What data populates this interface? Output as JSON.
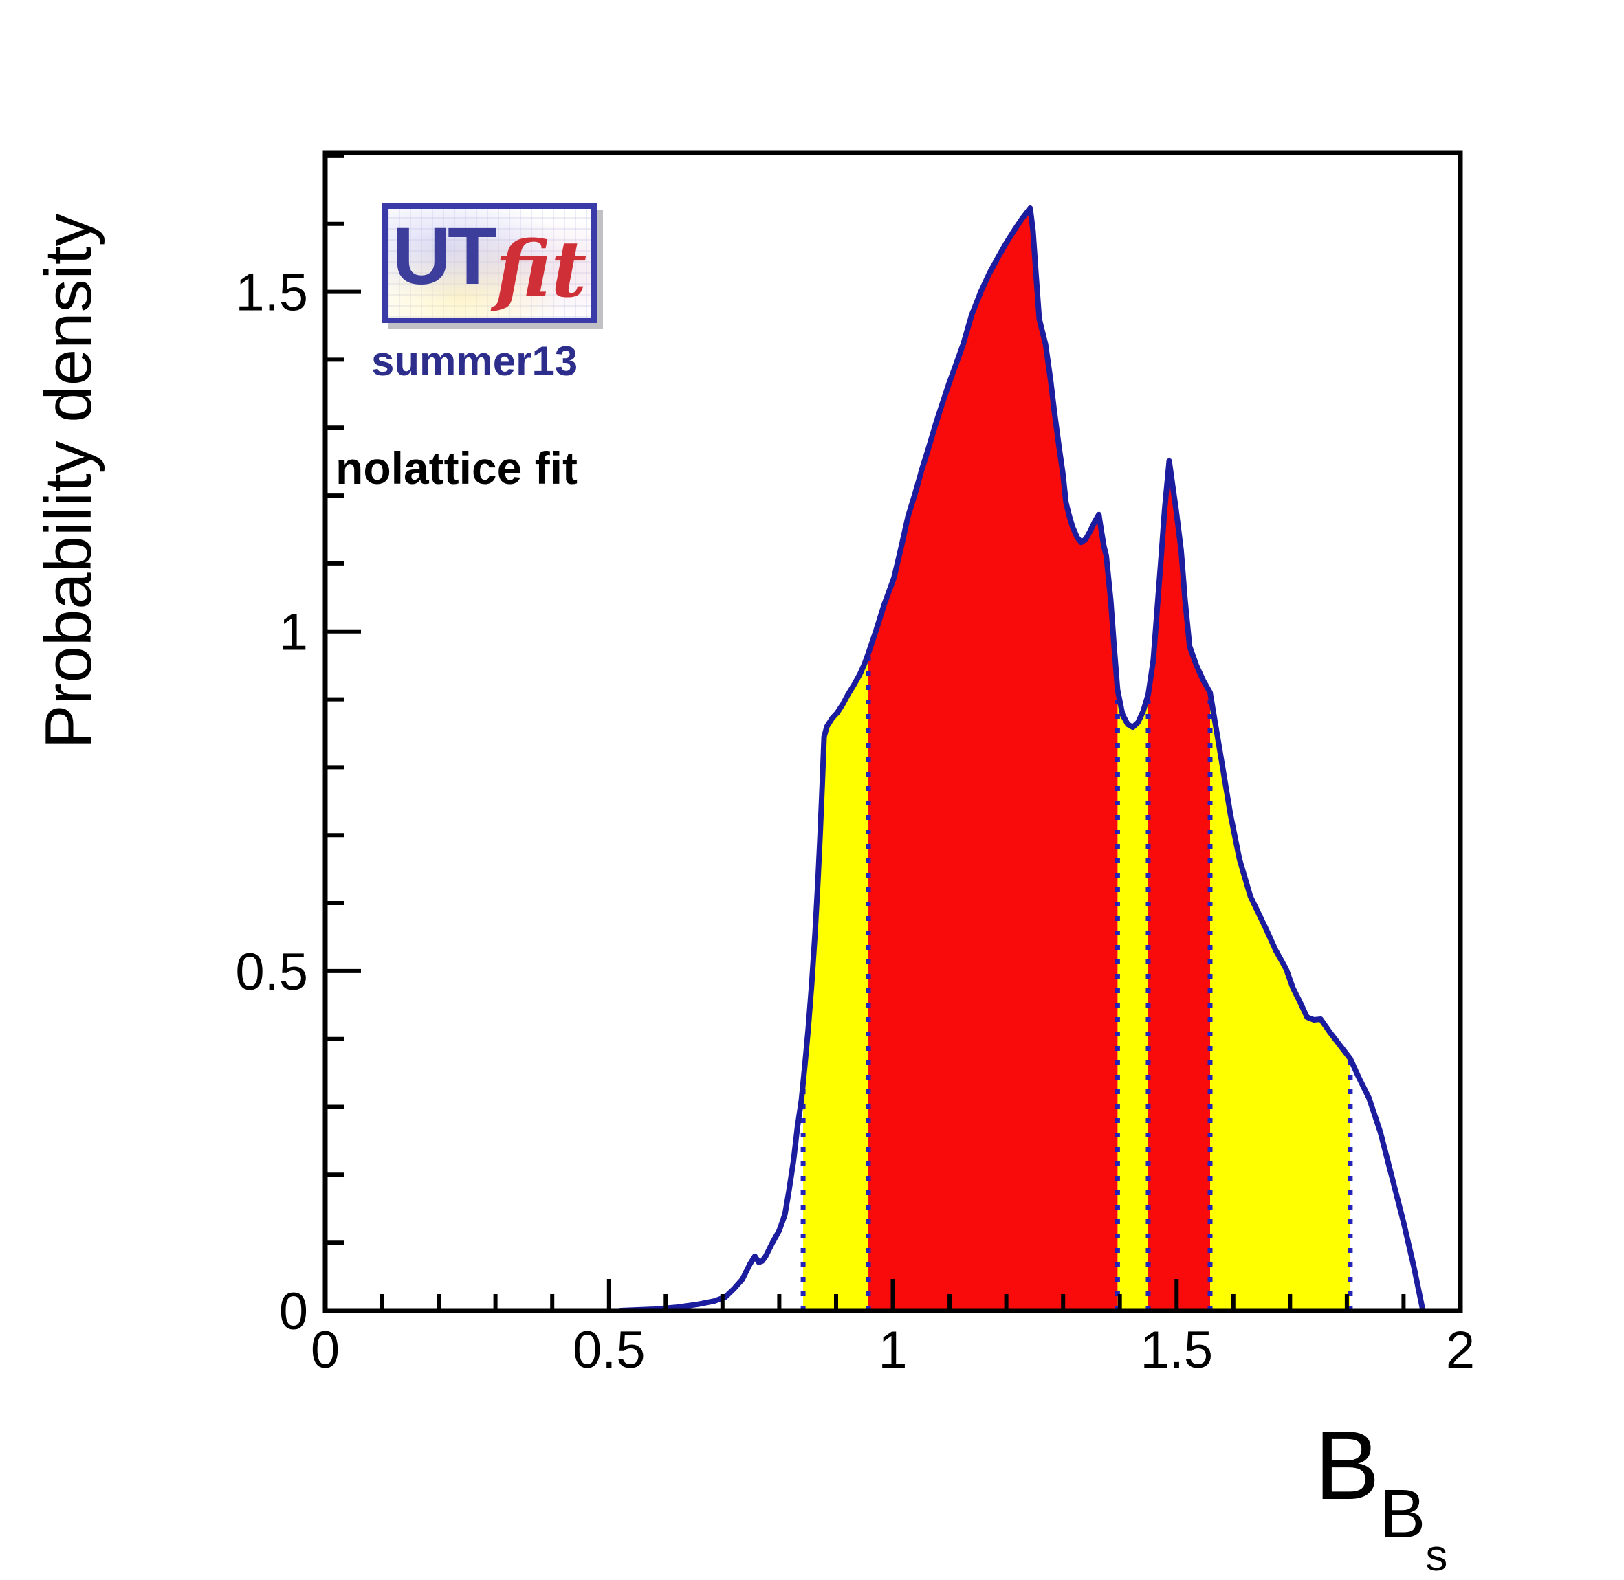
{
  "logo": {
    "ut": "UT",
    "fit": "fit"
  },
  "annotations": {
    "dataset": "summer13",
    "fit_label": "nolattice fit"
  },
  "chart_data": {
    "type": "area",
    "title": "",
    "xlabel": "B_{B_s}",
    "xlabel_main": "B",
    "xlabel_sub": "B",
    "xlabel_subsub": "s",
    "ylabel": "Probability density",
    "xlim": [
      0,
      2
    ],
    "ylim": [
      0,
      1.705
    ],
    "grid": false,
    "legend": "none",
    "x_ticks": {
      "major": [
        0,
        0.5,
        1,
        1.5,
        2
      ],
      "minor_step": 0.1,
      "labels": [
        {
          "value": 0,
          "text": "0"
        },
        {
          "value": 0.5,
          "text": "0.5"
        },
        {
          "value": 1,
          "text": "1"
        },
        {
          "value": 1.5,
          "text": "1.5"
        },
        {
          "value": 2,
          "text": "2"
        }
      ]
    },
    "y_ticks": {
      "major": [
        0,
        0.5,
        1,
        1.5
      ],
      "minor_step": 0.1,
      "minor_max": 1.7,
      "labels": [
        {
          "value": 0,
          "text": "0"
        },
        {
          "value": 0.5,
          "text": "0.5"
        },
        {
          "value": 1,
          "text": "1"
        },
        {
          "value": 1.5,
          "text": "1.5"
        }
      ]
    },
    "curve": [
      [
        0.52,
        0
      ],
      [
        0.58,
        0.002
      ],
      [
        0.62,
        0.005
      ],
      [
        0.655,
        0.009
      ],
      [
        0.685,
        0.014
      ],
      [
        0.705,
        0.02
      ],
      [
        0.72,
        0.032
      ],
      [
        0.735,
        0.046
      ],
      [
        0.748,
        0.068
      ],
      [
        0.757,
        0.08
      ],
      [
        0.764,
        0.071
      ],
      [
        0.77,
        0.073
      ],
      [
        0.776,
        0.08
      ],
      [
        0.788,
        0.1
      ],
      [
        0.8,
        0.118
      ],
      [
        0.81,
        0.142
      ],
      [
        0.817,
        0.176
      ],
      [
        0.825,
        0.22
      ],
      [
        0.832,
        0.27
      ],
      [
        0.839,
        0.31
      ],
      [
        0.845,
        0.36
      ],
      [
        0.851,
        0.415
      ],
      [
        0.857,
        0.48
      ],
      [
        0.863,
        0.555
      ],
      [
        0.868,
        0.63
      ],
      [
        0.872,
        0.7
      ],
      [
        0.876,
        0.78
      ],
      [
        0.879,
        0.845
      ],
      [
        0.884,
        0.86
      ],
      [
        0.893,
        0.872
      ],
      [
        0.902,
        0.88
      ],
      [
        0.912,
        0.893
      ],
      [
        0.921,
        0.907
      ],
      [
        0.932,
        0.922
      ],
      [
        0.942,
        0.937
      ],
      [
        0.95,
        0.952
      ],
      [
        0.957,
        0.968
      ],
      [
        0.97,
        1.0
      ],
      [
        0.985,
        1.04
      ],
      [
        1.002,
        1.079
      ],
      [
        1.015,
        1.125
      ],
      [
        1.027,
        1.17
      ],
      [
        1.04,
        1.205
      ],
      [
        1.051,
        1.238
      ],
      [
        1.063,
        1.27
      ],
      [
        1.075,
        1.304
      ],
      [
        1.087,
        1.335
      ],
      [
        1.099,
        1.365
      ],
      [
        1.112,
        1.395
      ],
      [
        1.124,
        1.423
      ],
      [
        1.139,
        1.466
      ],
      [
        1.155,
        1.5
      ],
      [
        1.17,
        1.527
      ],
      [
        1.185,
        1.55
      ],
      [
        1.2,
        1.572
      ],
      [
        1.215,
        1.592
      ],
      [
        1.228,
        1.608
      ],
      [
        1.242,
        1.623
      ],
      [
        1.247,
        1.59
      ],
      [
        1.252,
        1.53
      ],
      [
        1.258,
        1.46
      ],
      [
        1.269,
        1.423
      ],
      [
        1.278,
        1.37
      ],
      [
        1.285,
        1.321
      ],
      [
        1.293,
        1.271
      ],
      [
        1.3,
        1.23
      ],
      [
        1.305,
        1.19
      ],
      [
        1.311,
        1.17
      ],
      [
        1.317,
        1.153
      ],
      [
        1.325,
        1.138
      ],
      [
        1.332,
        1.131
      ],
      [
        1.34,
        1.136
      ],
      [
        1.348,
        1.148
      ],
      [
        1.356,
        1.162
      ],
      [
        1.363,
        1.172
      ],
      [
        1.367,
        1.15
      ],
      [
        1.372,
        1.125
      ],
      [
        1.376,
        1.112
      ],
      [
        1.384,
        1.046
      ],
      [
        1.39,
        0.978
      ],
      [
        1.396,
        0.914
      ],
      [
        1.405,
        0.877
      ],
      [
        1.414,
        0.863
      ],
      [
        1.423,
        0.859
      ],
      [
        1.432,
        0.866
      ],
      [
        1.441,
        0.882
      ],
      [
        1.45,
        0.907
      ],
      [
        1.459,
        0.958
      ],
      [
        1.467,
        1.046
      ],
      [
        1.473,
        1.112
      ],
      [
        1.479,
        1.18
      ],
      [
        1.487,
        1.251
      ],
      [
        1.493,
        1.215
      ],
      [
        1.499,
        1.18
      ],
      [
        1.508,
        1.119
      ],
      [
        1.515,
        1.046
      ],
      [
        1.523,
        0.978
      ],
      [
        1.535,
        0.95
      ],
      [
        1.547,
        0.928
      ],
      [
        1.559,
        0.91
      ],
      [
        1.578,
        0.816
      ],
      [
        1.595,
        0.73
      ],
      [
        1.611,
        0.664
      ],
      [
        1.63,
        0.61
      ],
      [
        1.657,
        0.563
      ],
      [
        1.675,
        0.53
      ],
      [
        1.693,
        0.503
      ],
      [
        1.705,
        0.475
      ],
      [
        1.717,
        0.455
      ],
      [
        1.73,
        0.432
      ],
      [
        1.742,
        0.428
      ],
      [
        1.754,
        0.429
      ],
      [
        1.77,
        0.41
      ],
      [
        1.794,
        0.384
      ],
      [
        1.806,
        0.371
      ],
      [
        1.82,
        0.345
      ],
      [
        1.839,
        0.313
      ],
      [
        1.859,
        0.263
      ],
      [
        1.88,
        0.195
      ],
      [
        1.9,
        0.13
      ],
      [
        1.918,
        0.065
      ],
      [
        1.934,
        0
      ]
    ],
    "red_intervals_68pct": [
      [
        0.957,
        1.396
      ],
      [
        1.45,
        1.559
      ]
    ],
    "yellow_intervals_95pct": [
      [
        0.842,
        0.957
      ],
      [
        1.396,
        1.45
      ],
      [
        1.559,
        1.806
      ]
    ],
    "dotted_lines_x": [
      0.842,
      0.957,
      1.396,
      1.45,
      1.559,
      1.806
    ],
    "colors": {
      "curve": "#1c1c9e",
      "dotted": "#2323bc",
      "red_fill": "#fa0b0b",
      "yellow_fill": "#ffff00",
      "axis": "#000000",
      "text": "#000000"
    }
  }
}
